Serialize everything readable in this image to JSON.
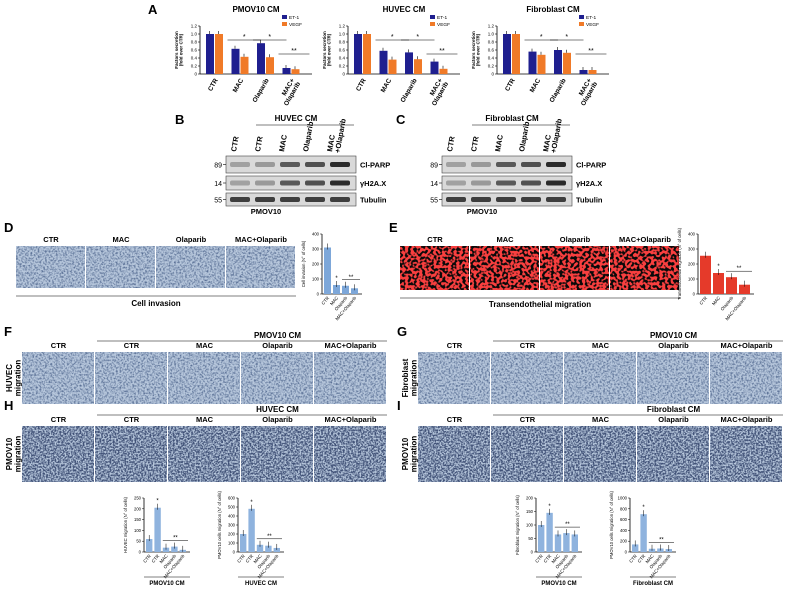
{
  "colors": {
    "et1": "#1f1f8f",
    "vegf": "#f07a28",
    "invasion_bar": "#7da7d9",
    "tem_bar": "#e53a2a",
    "migration_bar": "#8fb3de",
    "micro_blue": "#b7c7dc",
    "fluor_bg": "#0a0a0a",
    "fluor_dot": "#e01010",
    "blot_bg": "#d9d9d9",
    "blot_band": "#222222"
  },
  "panels": {
    "A": "A",
    "B": "B",
    "C": "C",
    "D": "D",
    "E": "E",
    "F": "F",
    "G": "G",
    "H": "H",
    "I": "I"
  },
  "panel_A": {
    "ylabel": "Factors secretion\n(fold over CTR)",
    "legend": [
      "ET-1",
      "VEGF"
    ],
    "categories": [
      "CTR",
      "MAC",
      "Olaparib",
      "MAC+\nOlaparib"
    ],
    "charts": [
      {
        "title": "PMOV10 CM",
        "ticks": [
          "0",
          "0.2",
          "0.4",
          "0.6",
          "0.8",
          "1.0",
          "1.2"
        ],
        "ymax": 1.2,
        "sig": [
          "*",
          "*",
          "**"
        ]
      },
      {
        "title": "HUVEC CM",
        "ticks": [
          "0",
          "0.2",
          "0.4",
          "0.6",
          "0.8",
          "1.0",
          "1.2"
        ],
        "ymax": 1.2,
        "sig": [
          "*",
          "*",
          "**"
        ]
      },
      {
        "title": "Fibroblast CM",
        "ticks": [
          "0",
          "0.2",
          "0.4",
          "0.6",
          "0.8",
          "1.0",
          "1.2"
        ],
        "ymax": 1.2,
        "sig": [
          "*",
          "*",
          "**"
        ]
      }
    ]
  },
  "chart_data": [
    {
      "type": "bar",
      "title": "PMOV10 CM",
      "categories": [
        "CTR",
        "MAC",
        "Olaparib",
        "MAC+ Olaparib"
      ],
      "series": [
        {
          "name": "ET-1",
          "values": [
            1.0,
            0.63,
            0.77,
            0.15
          ]
        },
        {
          "name": "VEGF",
          "values": [
            1.0,
            0.43,
            0.42,
            0.12
          ]
        }
      ],
      "ylim": [
        0,
        1.2
      ]
    },
    {
      "type": "bar",
      "title": "HUVEC CM",
      "categories": [
        "CTR",
        "MAC",
        "Olaparib",
        "MAC+ Olaparib"
      ],
      "series": [
        {
          "name": "ET-1",
          "values": [
            1.0,
            0.58,
            0.54,
            0.31
          ]
        },
        {
          "name": "VEGF",
          "values": [
            1.0,
            0.36,
            0.37,
            0.13
          ]
        }
      ],
      "ylim": [
        0,
        1.2
      ]
    },
    {
      "type": "bar",
      "title": "Fibroblast CM",
      "categories": [
        "CTR",
        "MAC",
        "Olaparib",
        "MAC+ Olaparib"
      ],
      "series": [
        {
          "name": "ET-1",
          "values": [
            1.0,
            0.56,
            0.6,
            0.1
          ]
        },
        {
          "name": "VEGF",
          "values": [
            1.0,
            0.48,
            0.53,
            0.1
          ]
        }
      ],
      "ylim": [
        0,
        1.2
      ]
    },
    {
      "type": "bar",
      "title": "",
      "ylabel": "Cell invasion (N° of cells)",
      "categories": [
        "CTR",
        "MAC",
        "Olaparib",
        "MAC+Olaparib"
      ],
      "values": [
        310,
        60,
        55,
        38
      ],
      "ylim": [
        0,
        400
      ]
    },
    {
      "type": "bar",
      "title": "",
      "ylabel": "Transendothelial migration (N° of cells)",
      "categories": [
        "CTR",
        "MAC",
        "Olaparib",
        "MAC+Olaparib"
      ],
      "values": [
        255,
        140,
        112,
        62
      ],
      "ylim": [
        0,
        400
      ]
    },
    {
      "type": "bar",
      "title": "",
      "ylabel": "HUVEC migration (N° of cells)",
      "categories": [
        "CTR",
        "CTR",
        "MAC",
        "Olaparib",
        "MAC+Olaparib"
      ],
      "values": [
        60,
        205,
        20,
        25,
        10
      ],
      "ylim": [
        0,
        250
      ]
    },
    {
      "type": "bar",
      "title": "",
      "ylabel": "PMOV10 cells migration (N° of cells)",
      "categories": [
        "CTR",
        "CTR",
        "MAC",
        "Olaparib",
        "MAC+Olaparib"
      ],
      "values": [
        200,
        480,
        80,
        70,
        45
      ],
      "ylim": [
        0,
        600
      ]
    },
    {
      "type": "bar",
      "title": "",
      "ylabel": "Fibroblast migration (N° of cells)",
      "categories": [
        "CTR",
        "CTR",
        "MAC",
        "Olaparib",
        "MAC+Olaparib"
      ],
      "values": [
        100,
        145,
        65,
        70,
        65
      ],
      "ylim": [
        0,
        200
      ]
    },
    {
      "type": "bar",
      "title": "",
      "ylabel": "PMOV10 cells migration (N° of cells)",
      "categories": [
        "CTR",
        "CTR",
        "MAC",
        "Olaparib",
        "MAC+Olaparib"
      ],
      "values": [
        140,
        700,
        60,
        65,
        55
      ],
      "ylim": [
        0,
        1000
      ]
    }
  ],
  "panel_B": {
    "header": "HUVEC CM",
    "lanes": [
      "CTR",
      "CTR",
      "MAC",
      "Olaparib",
      "MAC\n+Olaparib"
    ],
    "mw": [
      "89",
      "14",
      "55"
    ],
    "proteins": [
      "Cl-PARP",
      "γH2A.X",
      "Tubulin"
    ],
    "cell": "PMOV10"
  },
  "panel_C": {
    "header": "Fibroblast CM",
    "lanes": [
      "CTR",
      "CTR",
      "MAC",
      "Olaparib",
      "MAC\n+Olaparib"
    ],
    "mw": [
      "89",
      "14",
      "55"
    ],
    "proteins": [
      "Cl-PARP",
      "γH2A.X",
      "Tubulin"
    ],
    "cell": "PMOV10"
  },
  "panel_D": {
    "labels": [
      "CTR",
      "MAC",
      "Olaparib",
      "MAC+Olaparib"
    ],
    "caption": "Cell invasion",
    "ylabel": "Cell invasion (N° of cells)",
    "ticks": [
      "0",
      "100",
      "200",
      "300",
      "400"
    ],
    "xcats": [
      "CTR",
      "MAC",
      "Olaparib",
      "MAC+Olaparib"
    ],
    "sig": [
      "*",
      "*",
      "**"
    ]
  },
  "panel_E": {
    "labels": [
      "CTR",
      "MAC",
      "Olaparib",
      "MAC+Olaparib"
    ],
    "caption": "Transendothelial migration",
    "ylabel": "Transendothelial migration (N° of cells)",
    "ticks": [
      "0",
      "100",
      "200",
      "300",
      "400"
    ],
    "xcats": [
      "CTR",
      "MAC",
      "Olaparib",
      "MAC+Olaparib"
    ],
    "sig": [
      "*",
      "*",
      "**"
    ]
  },
  "panel_F": {
    "header": "PMOV10 CM",
    "labels": [
      "CTR",
      "CTR",
      "MAC",
      "Olaparib",
      "MAC+Olaparib"
    ],
    "row_label": "HUVEC\nmigration"
  },
  "panel_G": {
    "header": "PMOV10 CM",
    "labels": [
      "CTR",
      "CTR",
      "MAC",
      "Olaparib",
      "MAC+Olaparib"
    ],
    "row_label": "Fibroblast\nmigration"
  },
  "panel_H": {
    "header": "HUVEC CM",
    "labels": [
      "CTR",
      "CTR",
      "MAC",
      "Olaparib",
      "MAC+Olaparib"
    ],
    "row_label": "PMOV10\nmigration",
    "chart1": {
      "ylabel": "HUVEC migration (N° of cells)",
      "ticks": [
        "0",
        "50",
        "100",
        "150",
        "200",
        "250"
      ],
      "xcats": [
        "CTR",
        "CTR",
        "MAC",
        "Olaparib",
        "MAC+Olaparib"
      ],
      "footer": "PMOV10 CM",
      "sig": [
        "*",
        "**"
      ]
    },
    "chart2": {
      "ylabel": "PMOV10 cells migration (N° of cells)",
      "ticks": [
        "0",
        "100",
        "200",
        "300",
        "400",
        "500",
        "600"
      ],
      "xcats": [
        "CTR",
        "CTR",
        "MAC",
        "Olaparib",
        "MAC+Olaparib"
      ],
      "footer": "HUVEC CM",
      "sig": [
        "*",
        "**"
      ]
    }
  },
  "panel_I": {
    "header": "Fibroblast CM",
    "labels": [
      "CTR",
      "CTR",
      "MAC",
      "Olaparib",
      "MAC+Olaparib"
    ],
    "row_label": "PMOV10\nmigration",
    "chart1": {
      "ylabel": "Fibroblast migration (N° of cells)",
      "ticks": [
        "0",
        "50",
        "100",
        "150",
        "200"
      ],
      "xcats": [
        "CTR",
        "CTR",
        "MAC",
        "Olaparib",
        "MAC+Olaparib"
      ],
      "footer": "PMOV10 CM",
      "sig": [
        "*",
        "**"
      ]
    },
    "chart2": {
      "ylabel": "PMOV10 cells migration (N° of cells)",
      "ticks": [
        "0",
        "200",
        "400",
        "600",
        "800",
        "1000"
      ],
      "xcats": [
        "CTR",
        "CTR",
        "MAC",
        "Olaparib",
        "MAC+Olaparib"
      ],
      "footer": "Fibroblast CM",
      "sig": [
        "*",
        "**"
      ]
    }
  }
}
